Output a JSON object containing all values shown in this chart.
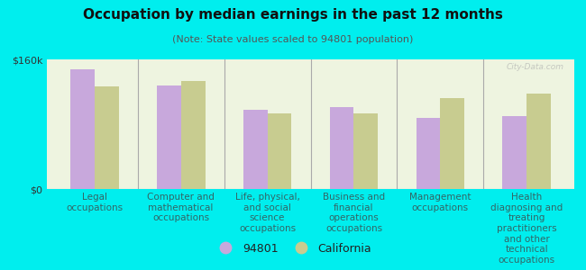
{
  "title": "Occupation by median earnings in the past 12 months",
  "subtitle": "(Note: State values scaled to 94801 population)",
  "categories": [
    "Legal\noccupations",
    "Computer and\nmathematical\noccupations",
    "Life, physical,\nand social\nscience\noccupations",
    "Business and\nfinancial\noperations\noccupations",
    "Management\noccupations",
    "Health\ndiagnosing and\ntreating\npractitioners\nand other\ntechnical\noccupations"
  ],
  "values_94801": [
    148000,
    128000,
    98000,
    101000,
    88000,
    90000
  ],
  "values_california": [
    127000,
    133000,
    93000,
    93000,
    112000,
    118000
  ],
  "color_94801": "#c8a8dc",
  "color_california": "#c8cc90",
  "ylim": [
    0,
    160000
  ],
  "ytick_labels": [
    "$0",
    "$160k"
  ],
  "background_color": "#00eeee",
  "plot_bg_color": "#eef4e0",
  "legend_label_94801": "94801",
  "legend_label_california": "California",
  "watermark": "City-Data.com",
  "title_fontsize": 11,
  "subtitle_fontsize": 8,
  "tick_fontsize": 8,
  "label_fontsize": 7.5,
  "legend_fontsize": 9
}
